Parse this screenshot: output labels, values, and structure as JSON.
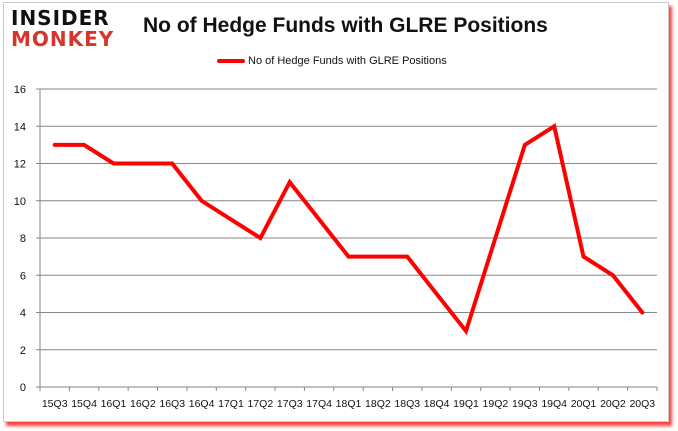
{
  "logo": {
    "line1": "INSIDER",
    "line2": "MONKEY"
  },
  "header": {
    "title": "No of Hedge Funds with GLRE Positions"
  },
  "legend": {
    "label": "No of Hedge Funds with GLRE Positions",
    "color": "#ff0000"
  },
  "chart_data": {
    "type": "line",
    "title": "No of Hedge Funds with GLRE Positions",
    "xlabel": "",
    "ylabel": "",
    "ylim": [
      0,
      16
    ],
    "yticks": [
      0,
      2,
      4,
      6,
      8,
      10,
      12,
      14,
      16
    ],
    "grid": true,
    "legend_position": "top",
    "categories": [
      "15Q3",
      "15Q4",
      "16Q1",
      "16Q2",
      "16Q3",
      "16Q4",
      "17Q1",
      "17Q2",
      "17Q3",
      "17Q4",
      "18Q1",
      "18Q2",
      "18Q3",
      "18Q4",
      "19Q1",
      "19Q2",
      "19Q3",
      "19Q4",
      "20Q1",
      "20Q2",
      "20Q3"
    ],
    "series": [
      {
        "name": "No of Hedge Funds with GLRE Positions",
        "color": "#ff0000",
        "values": [
          13,
          13,
          12,
          12,
          12,
          10,
          9,
          8,
          11,
          9,
          7,
          7,
          7,
          5,
          3,
          8,
          13,
          14,
          7,
          6,
          4
        ]
      }
    ]
  }
}
